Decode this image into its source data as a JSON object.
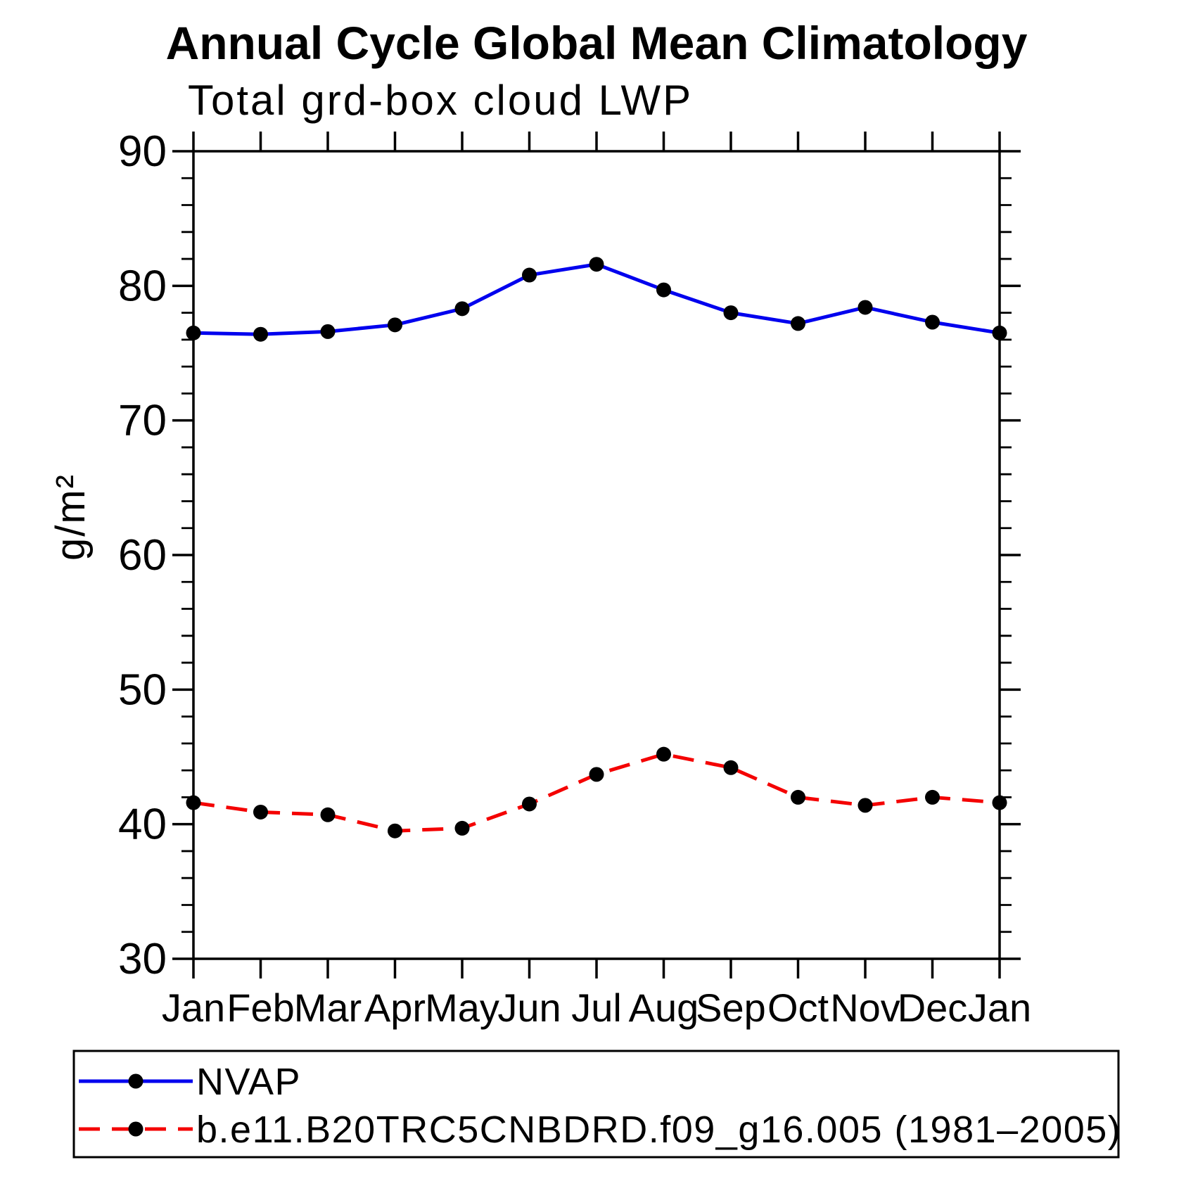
{
  "chart_data": {
    "type": "line",
    "title": "Annual Cycle Global Mean Climatology",
    "subtitle": "Total grd-box cloud LWP",
    "xlabel": "",
    "ylabel": "g/m²",
    "ylim": [
      30,
      90
    ],
    "ytick_major": [
      30,
      40,
      50,
      60,
      70,
      80,
      90
    ],
    "ytick_minor_step": 2,
    "grid": "off",
    "legend_position": "bottom-left-box",
    "categories": [
      "Jan",
      "Feb",
      "Mar",
      "Apr",
      "May",
      "Jun",
      "Jul",
      "Aug",
      "Sep",
      "Oct",
      "Nov",
      "Dec",
      "Jan"
    ],
    "series": [
      {
        "name": "NVAP",
        "line_style": "solid",
        "color": "#0000ee",
        "marker_color": "#000000",
        "values": [
          76.5,
          76.4,
          76.6,
          77.1,
          78.3,
          80.8,
          81.6,
          79.7,
          78.0,
          77.2,
          78.4,
          77.3,
          76.5
        ]
      },
      {
        "name": "b.e11.B20TRC5CNBDRD.f09_g16.005 (1981–2005)",
        "line_style": "dashed",
        "color": "#f40000",
        "marker_color": "#000000",
        "values": [
          41.6,
          40.9,
          40.7,
          39.5,
          39.7,
          41.5,
          43.7,
          45.2,
          44.2,
          42.0,
          41.4,
          42.0,
          41.6
        ]
      }
    ],
    "axis_color": "#000000"
  }
}
